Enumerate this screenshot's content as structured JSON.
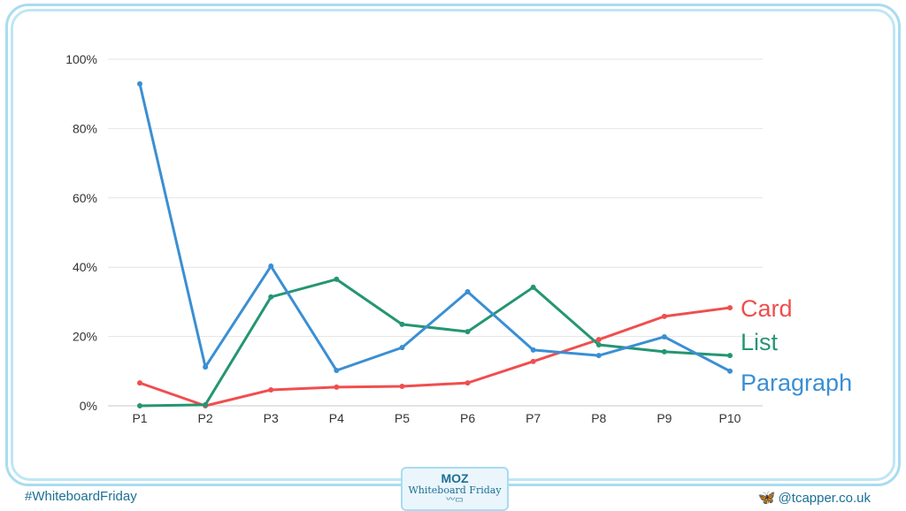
{
  "chart_data": {
    "type": "line",
    "title": "",
    "xlabel": "",
    "ylabel": "",
    "categories": [
      "P1",
      "P2",
      "P3",
      "P4",
      "P5",
      "P6",
      "P7",
      "P8",
      "P9",
      "P10"
    ],
    "ylim": [
      0,
      100
    ],
    "yticks": [
      0,
      20,
      40,
      60,
      80,
      100
    ],
    "ytick_labels": [
      "0%",
      "20%",
      "40%",
      "60%",
      "80%",
      "100%"
    ],
    "grid": true,
    "legend_placement": "right, inline at line ends",
    "series": [
      {
        "name": "Card",
        "color": "#f04e4e",
        "values": [
          6.6,
          0,
          4.6,
          5.4,
          5.6,
          6.6,
          12.8,
          19.1,
          25.8,
          28.3
        ]
      },
      {
        "name": "List",
        "color": "#259573",
        "values": [
          0,
          0.3,
          31.4,
          36.5,
          23.5,
          21.4,
          34.2,
          17.6,
          15.6,
          14.5
        ]
      },
      {
        "name": "Paragraph",
        "color": "#3a8fd4",
        "values": [
          92.9,
          11.2,
          40.3,
          10.2,
          16.8,
          32.9,
          16.1,
          14.5,
          19.9,
          10.0
        ]
      }
    ]
  },
  "footer": {
    "hashtag": "#WhiteboardFriday",
    "handle": "@tcapper.co.uk",
    "badge_logo": "MOZ",
    "badge_title": "Whiteboard Friday",
    "handle_icon": "butterfly-icon"
  }
}
